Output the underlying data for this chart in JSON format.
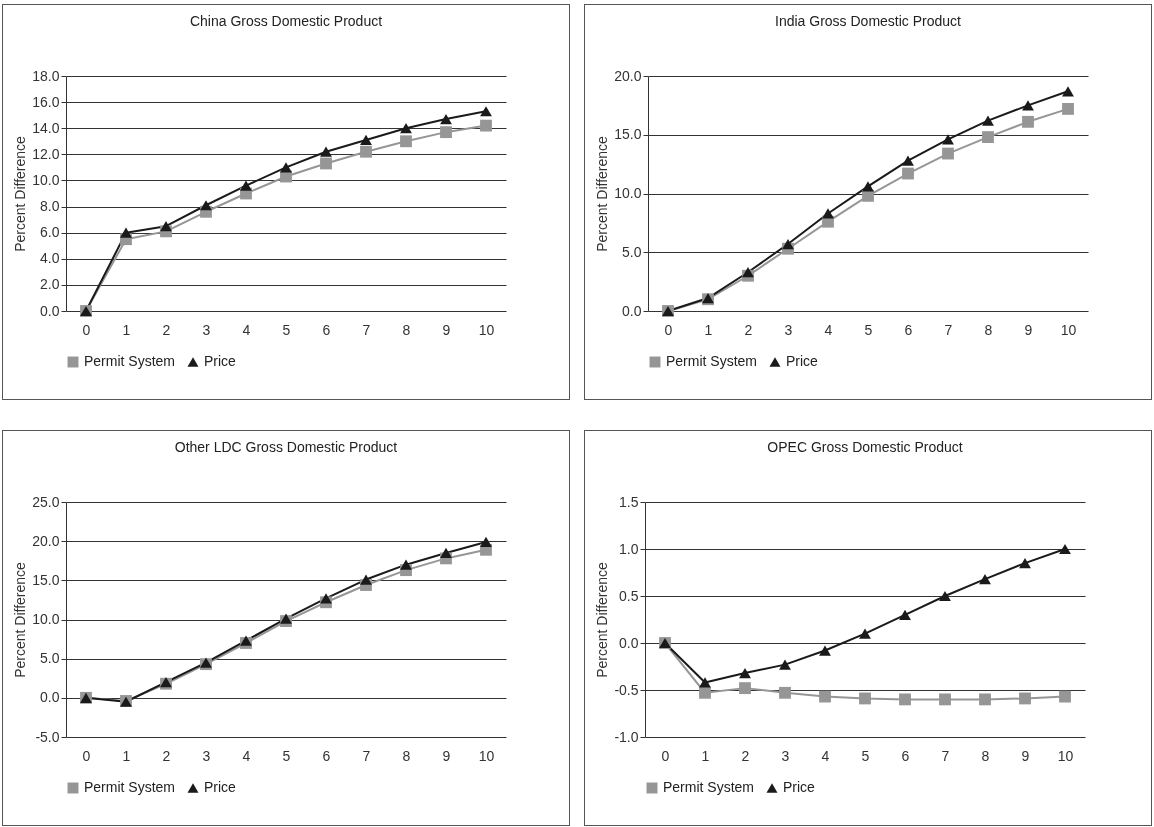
{
  "chart_data": [
    {
      "type": "line",
      "title": "China Gross Domestic Product",
      "ylabel": "Percent Difference",
      "categories": [
        "0",
        "1",
        "2",
        "3",
        "4",
        "5",
        "6",
        "7",
        "8",
        "9",
        "10"
      ],
      "ylim": [
        0,
        18
      ],
      "yticks": [
        {
          "value": 0,
          "label": "0.0"
        },
        {
          "value": 2,
          "label": "2.0"
        },
        {
          "value": 4,
          "label": "4.0"
        },
        {
          "value": 6,
          "label": "6.0"
        },
        {
          "value": 8,
          "label": "8.0"
        },
        {
          "value": 10,
          "label": "10.0"
        },
        {
          "value": 12,
          "label": "12.0"
        },
        {
          "value": 14,
          "label": "14.0"
        },
        {
          "value": 16,
          "label": "16.0"
        },
        {
          "value": 18,
          "label": "18.0"
        }
      ],
      "grid": "y",
      "legend": "bottom",
      "series": [
        {
          "name": "Permit System",
          "color": "#969696",
          "marker": "square",
          "values": [
            0,
            5.5,
            6.1,
            7.6,
            9.0,
            10.3,
            11.3,
            12.2,
            13.0,
            13.7,
            14.2
          ]
        },
        {
          "name": "Price",
          "color": "#1a1a1a",
          "marker": "triangle",
          "values": [
            0,
            6.0,
            6.5,
            8.1,
            9.6,
            11.0,
            12.2,
            13.1,
            14.0,
            14.7,
            15.3
          ]
        }
      ]
    },
    {
      "type": "line",
      "title": "India Gross Domestic Product",
      "ylabel": "Percent Difference",
      "categories": [
        "0",
        "1",
        "2",
        "3",
        "4",
        "5",
        "6",
        "7",
        "8",
        "9",
        "10"
      ],
      "ylim": [
        0,
        20
      ],
      "yticks": [
        {
          "value": 0,
          "label": "0.0"
        },
        {
          "value": 5,
          "label": "5.0"
        },
        {
          "value": 10,
          "label": "10.0"
        },
        {
          "value": 15,
          "label": "15.0"
        },
        {
          "value": 20,
          "label": "20.0"
        }
      ],
      "grid": "y",
      "legend": "bottom",
      "series": [
        {
          "name": "Permit System",
          "color": "#969696",
          "marker": "square",
          "values": [
            0,
            1.0,
            3.0,
            5.3,
            7.6,
            9.8,
            11.7,
            13.4,
            14.8,
            16.1,
            17.2
          ]
        },
        {
          "name": "Price",
          "color": "#1a1a1a",
          "marker": "triangle",
          "values": [
            0,
            1.1,
            3.3,
            5.7,
            8.3,
            10.6,
            12.8,
            14.6,
            16.2,
            17.5,
            18.7
          ]
        }
      ]
    },
    {
      "type": "line",
      "title": "Other LDC Gross Domestic Product",
      "ylabel": "Percent Difference",
      "categories": [
        "0",
        "1",
        "2",
        "3",
        "4",
        "5",
        "6",
        "7",
        "8",
        "9",
        "10"
      ],
      "ylim": [
        -5,
        25
      ],
      "yticks": [
        {
          "value": -5,
          "label": "-5.0"
        },
        {
          "value": 0,
          "label": "0.0"
        },
        {
          "value": 5,
          "label": "5.0"
        },
        {
          "value": 10,
          "label": "10.0"
        },
        {
          "value": 15,
          "label": "15.0"
        },
        {
          "value": 20,
          "label": "20.0"
        },
        {
          "value": 25,
          "label": "25.0"
        }
      ],
      "grid": "y",
      "legend": "bottom",
      "series": [
        {
          "name": "Permit System",
          "color": "#969696",
          "marker": "square",
          "values": [
            0,
            -0.4,
            1.8,
            4.3,
            7.0,
            9.8,
            12.2,
            14.4,
            16.3,
            17.8,
            18.9
          ]
        },
        {
          "name": "Price",
          "color": "#1a1a1a",
          "marker": "triangle",
          "values": [
            0,
            -0.5,
            2.0,
            4.5,
            7.3,
            10.1,
            12.7,
            15.1,
            17.0,
            18.5,
            19.9
          ]
        }
      ]
    },
    {
      "type": "line",
      "title": "OPEC Gross Domestic Product",
      "ylabel": "Percent Difference",
      "categories": [
        "0",
        "1",
        "2",
        "3",
        "4",
        "5",
        "6",
        "7",
        "8",
        "9",
        "10"
      ],
      "ylim": [
        -1,
        1.5
      ],
      "yticks": [
        {
          "value": -1,
          "label": "-1.0"
        },
        {
          "value": -0.5,
          "label": "-0.5"
        },
        {
          "value": 0,
          "label": "0.0"
        },
        {
          "value": 0.5,
          "label": "0.5"
        },
        {
          "value": 1,
          "label": "1.0"
        },
        {
          "value": 1.5,
          "label": "1.5"
        }
      ],
      "grid": "y",
      "legend": "bottom",
      "series": [
        {
          "name": "Permit System",
          "color": "#969696",
          "marker": "square",
          "values": [
            0,
            -0.53,
            -0.48,
            -0.53,
            -0.57,
            -0.59,
            -0.6,
            -0.6,
            -0.6,
            -0.59,
            -0.57
          ]
        },
        {
          "name": "Price",
          "color": "#1a1a1a",
          "marker": "triangle",
          "values": [
            0,
            -0.42,
            -0.32,
            -0.23,
            -0.08,
            0.1,
            0.3,
            0.5,
            0.68,
            0.85,
            1.0
          ]
        }
      ]
    }
  ]
}
